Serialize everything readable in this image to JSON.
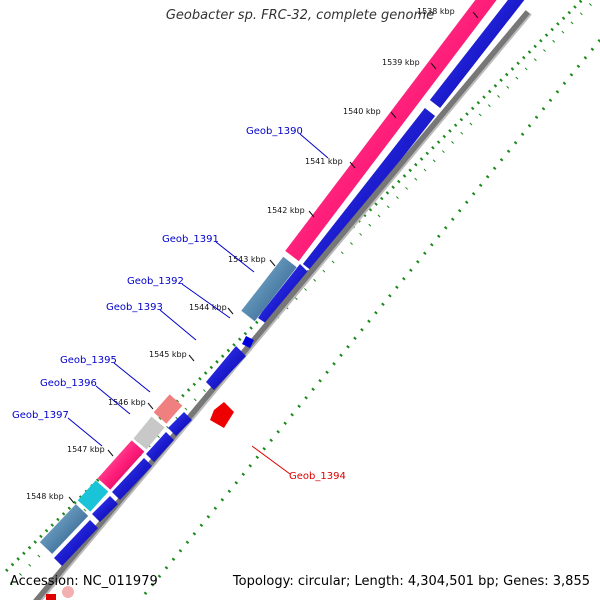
{
  "title": "Geobacter sp. FRC-32, complete genome",
  "footer": {
    "accession": "Accession: NC_011979",
    "summary": "Topology: circular; Length: 4,304,501 bp; Genes: 3,855"
  },
  "ticks": [
    "1538 kbp",
    "1539 kbp",
    "1540 kbp",
    "1541 kbp",
    "1542 kbp",
    "1543 kbp",
    "1544 kbp",
    "1545 kbp",
    "1546 kbp",
    "1547 kbp",
    "1548 kbp"
  ],
  "genes": [
    {
      "id": "Geob_1390",
      "color": "#0000cc"
    },
    {
      "id": "Geob_1391",
      "color": "#0000cc"
    },
    {
      "id": "Geob_1392",
      "color": "#0000cc"
    },
    {
      "id": "Geob_1393",
      "color": "#0000cc"
    },
    {
      "id": "Geob_1394",
      "color": "#dd0000"
    },
    {
      "id": "Geob_1395",
      "color": "#0000cc"
    },
    {
      "id": "Geob_1396",
      "color": "#0000cc"
    },
    {
      "id": "Geob_1397",
      "color": "#0000cc"
    }
  ],
  "colors": {
    "cds_forward": "#0000dd",
    "cds_reverse": "#dd0000",
    "track_pink": "#ff1f7a",
    "track_steel": "#4a84b0",
    "dots_green": "#1a8a1a"
  }
}
